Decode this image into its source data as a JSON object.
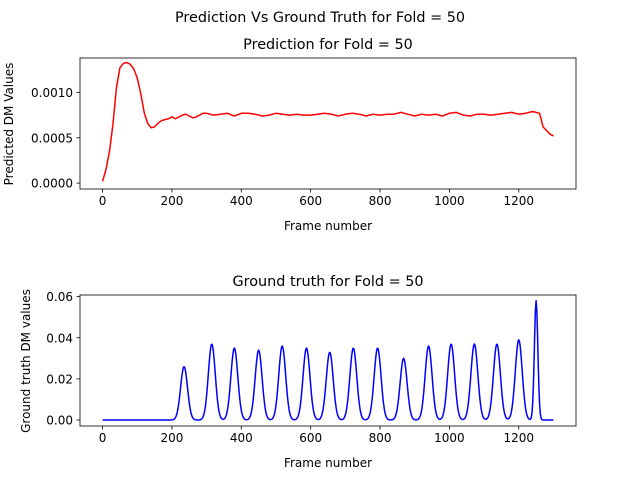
{
  "figure": {
    "suptitle": "Prediction Vs Ground Truth for Fold = 50"
  },
  "chart_data": [
    {
      "type": "line",
      "title": "Prediction for Fold = 50",
      "xlabel": "Frame number",
      "ylabel": "Predicted DM Values",
      "xlim": [
        -65,
        1365
      ],
      "ylim": [
        -6.5e-05,
        0.00138
      ],
      "xticks": [
        0,
        200,
        400,
        600,
        800,
        1000,
        1200
      ],
      "xtick_labels": [
        "0",
        "200",
        "400",
        "600",
        "800",
        "1000",
        "1200"
      ],
      "yticks": [
        0.0,
        0.0005,
        0.001
      ],
      "ytick_labels": [
        "0.0000",
        "0.0005",
        "0.0010"
      ],
      "grid": false,
      "series": [
        {
          "color": "#ff0000",
          "x": [
            0,
            10,
            20,
            30,
            40,
            50,
            60,
            70,
            80,
            90,
            100,
            110,
            120,
            130,
            140,
            150,
            160,
            170,
            180,
            190,
            200,
            210,
            220,
            230,
            240,
            250,
            260,
            270,
            280,
            290,
            300,
            320,
            340,
            360,
            380,
            400,
            420,
            440,
            460,
            480,
            500,
            520,
            540,
            560,
            580,
            600,
            620,
            640,
            660,
            680,
            700,
            720,
            740,
            760,
            780,
            800,
            820,
            840,
            860,
            880,
            900,
            920,
            940,
            960,
            980,
            1000,
            1020,
            1040,
            1060,
            1080,
            1100,
            1120,
            1140,
            1160,
            1180,
            1200,
            1220,
            1240,
            1250,
            1260,
            1270,
            1280,
            1290,
            1300
          ],
          "y": [
            2e-05,
            0.00015,
            0.00035,
            0.00065,
            0.00105,
            0.00127,
            0.00132,
            0.00133,
            0.00131,
            0.00126,
            0.00116,
            0.00099,
            0.00078,
            0.00066,
            0.00061,
            0.00062,
            0.00066,
            0.00069,
            0.0007,
            0.00071,
            0.00073,
            0.00071,
            0.00073,
            0.00075,
            0.00076,
            0.00074,
            0.00072,
            0.00073,
            0.00075,
            0.00077,
            0.00077,
            0.00075,
            0.00076,
            0.00077,
            0.00074,
            0.00077,
            0.00077,
            0.00076,
            0.00074,
            0.00075,
            0.00077,
            0.00076,
            0.00075,
            0.00076,
            0.00075,
            0.00075,
            0.00076,
            0.00077,
            0.00076,
            0.00074,
            0.00076,
            0.00077,
            0.00076,
            0.00074,
            0.00076,
            0.00075,
            0.00076,
            0.00076,
            0.00078,
            0.00076,
            0.00074,
            0.00076,
            0.00075,
            0.00076,
            0.00074,
            0.00077,
            0.00078,
            0.00075,
            0.00074,
            0.00076,
            0.00076,
            0.00075,
            0.00076,
            0.00077,
            0.00078,
            0.00076,
            0.00077,
            0.00079,
            0.00078,
            0.00077,
            0.00062,
            0.00058,
            0.00054,
            0.00052
          ]
        }
      ]
    },
    {
      "type": "line",
      "title": "Ground truth for Fold = 50",
      "xlabel": "Frame number",
      "ylabel": "Ground truth DM values",
      "xlim": [
        -65,
        1365
      ],
      "ylim": [
        -0.0029,
        0.0608
      ],
      "xticks": [
        0,
        200,
        400,
        600,
        800,
        1000,
        1200
      ],
      "xtick_labels": [
        "0",
        "200",
        "400",
        "600",
        "800",
        "1000",
        "1200"
      ],
      "yticks": [
        0.0,
        0.02,
        0.04,
        0.06
      ],
      "ytick_labels": [
        "0.00",
        "0.02",
        "0.04",
        "0.06"
      ],
      "grid": false,
      "series": [
        {
          "color": "#0000ff",
          "baseline": [
            0,
            1300
          ],
          "peaks": [
            {
              "x": 235,
              "y": 0.026
            },
            {
              "x": 315,
              "y": 0.037
            },
            {
              "x": 380,
              "y": 0.035
            },
            {
              "x": 450,
              "y": 0.034
            },
            {
              "x": 518,
              "y": 0.036
            },
            {
              "x": 588,
              "y": 0.035
            },
            {
              "x": 655,
              "y": 0.033
            },
            {
              "x": 723,
              "y": 0.035
            },
            {
              "x": 793,
              "y": 0.035
            },
            {
              "x": 868,
              "y": 0.03
            },
            {
              "x": 940,
              "y": 0.036
            },
            {
              "x": 1005,
              "y": 0.037
            },
            {
              "x": 1072,
              "y": 0.037
            },
            {
              "x": 1137,
              "y": 0.037
            },
            {
              "x": 1200,
              "y": 0.039
            },
            {
              "x": 1250,
              "y": 0.058
            }
          ]
        }
      ]
    }
  ]
}
